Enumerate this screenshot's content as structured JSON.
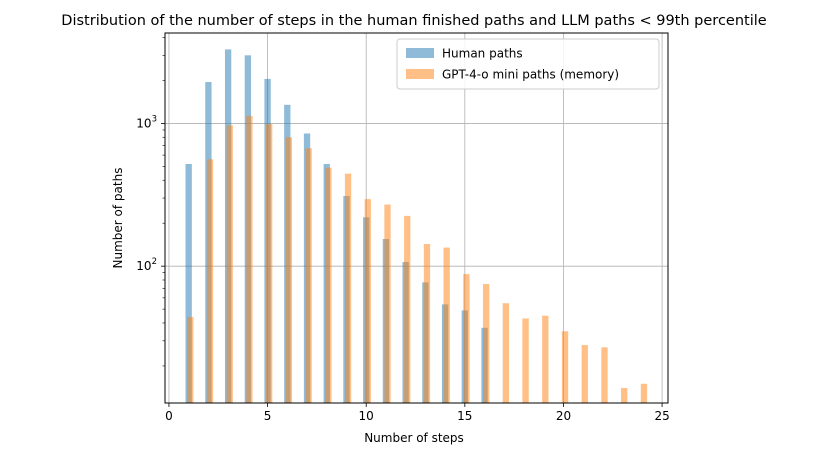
{
  "chart_data": {
    "type": "bar",
    "title": "Distribution of the number of steps in the human finished paths and LLM paths < 99th percentile",
    "xlabel": "Number of steps",
    "ylabel": "Number of paths",
    "xlim": [
      -0.2,
      25.3
    ],
    "ylim": [
      11,
      4300
    ],
    "yscale": "log",
    "grid": true,
    "legend_position": "top-right",
    "x_ticks": [
      {
        "value": 0,
        "label": "0"
      },
      {
        "value": 5,
        "label": "5"
      },
      {
        "value": 10,
        "label": "10"
      },
      {
        "value": 15,
        "label": "15"
      },
      {
        "value": 20,
        "label": "20"
      },
      {
        "value": 25,
        "label": "25"
      }
    ],
    "y_ticks": [
      {
        "value": 100,
        "base": "10",
        "exp": "2"
      },
      {
        "value": 1000,
        "base": "10",
        "exp": "3"
      }
    ],
    "series": [
      {
        "name": "Human paths",
        "color": "#1f77b4",
        "opacity": 0.5,
        "x": [
          1,
          2,
          3,
          4,
          5,
          6,
          7,
          8,
          9,
          10,
          11,
          12,
          13,
          14,
          15,
          16
        ],
        "values": [
          520,
          1950,
          3300,
          3000,
          2050,
          1350,
          850,
          520,
          310,
          220,
          155,
          107,
          77,
          54,
          49,
          37
        ]
      },
      {
        "name": "GPT-4-o mini paths (memory)",
        "color": "#ff7f0e",
        "opacity": 0.5,
        "x": [
          1.08,
          2.08,
          3.08,
          4.08,
          5.08,
          6.08,
          7.08,
          8.08,
          9.08,
          10.08,
          11.08,
          12.08,
          13.08,
          14.08,
          15.08,
          16.08,
          17.08,
          18.08,
          19.08,
          20.08,
          21.08,
          22.08,
          23.08,
          24.08
        ],
        "values": [
          44,
          560,
          970,
          1130,
          990,
          800,
          670,
          490,
          445,
          295,
          270,
          225,
          143,
          135,
          88,
          75,
          55,
          43,
          45,
          35,
          28,
          27,
          14,
          15
        ]
      }
    ]
  }
}
